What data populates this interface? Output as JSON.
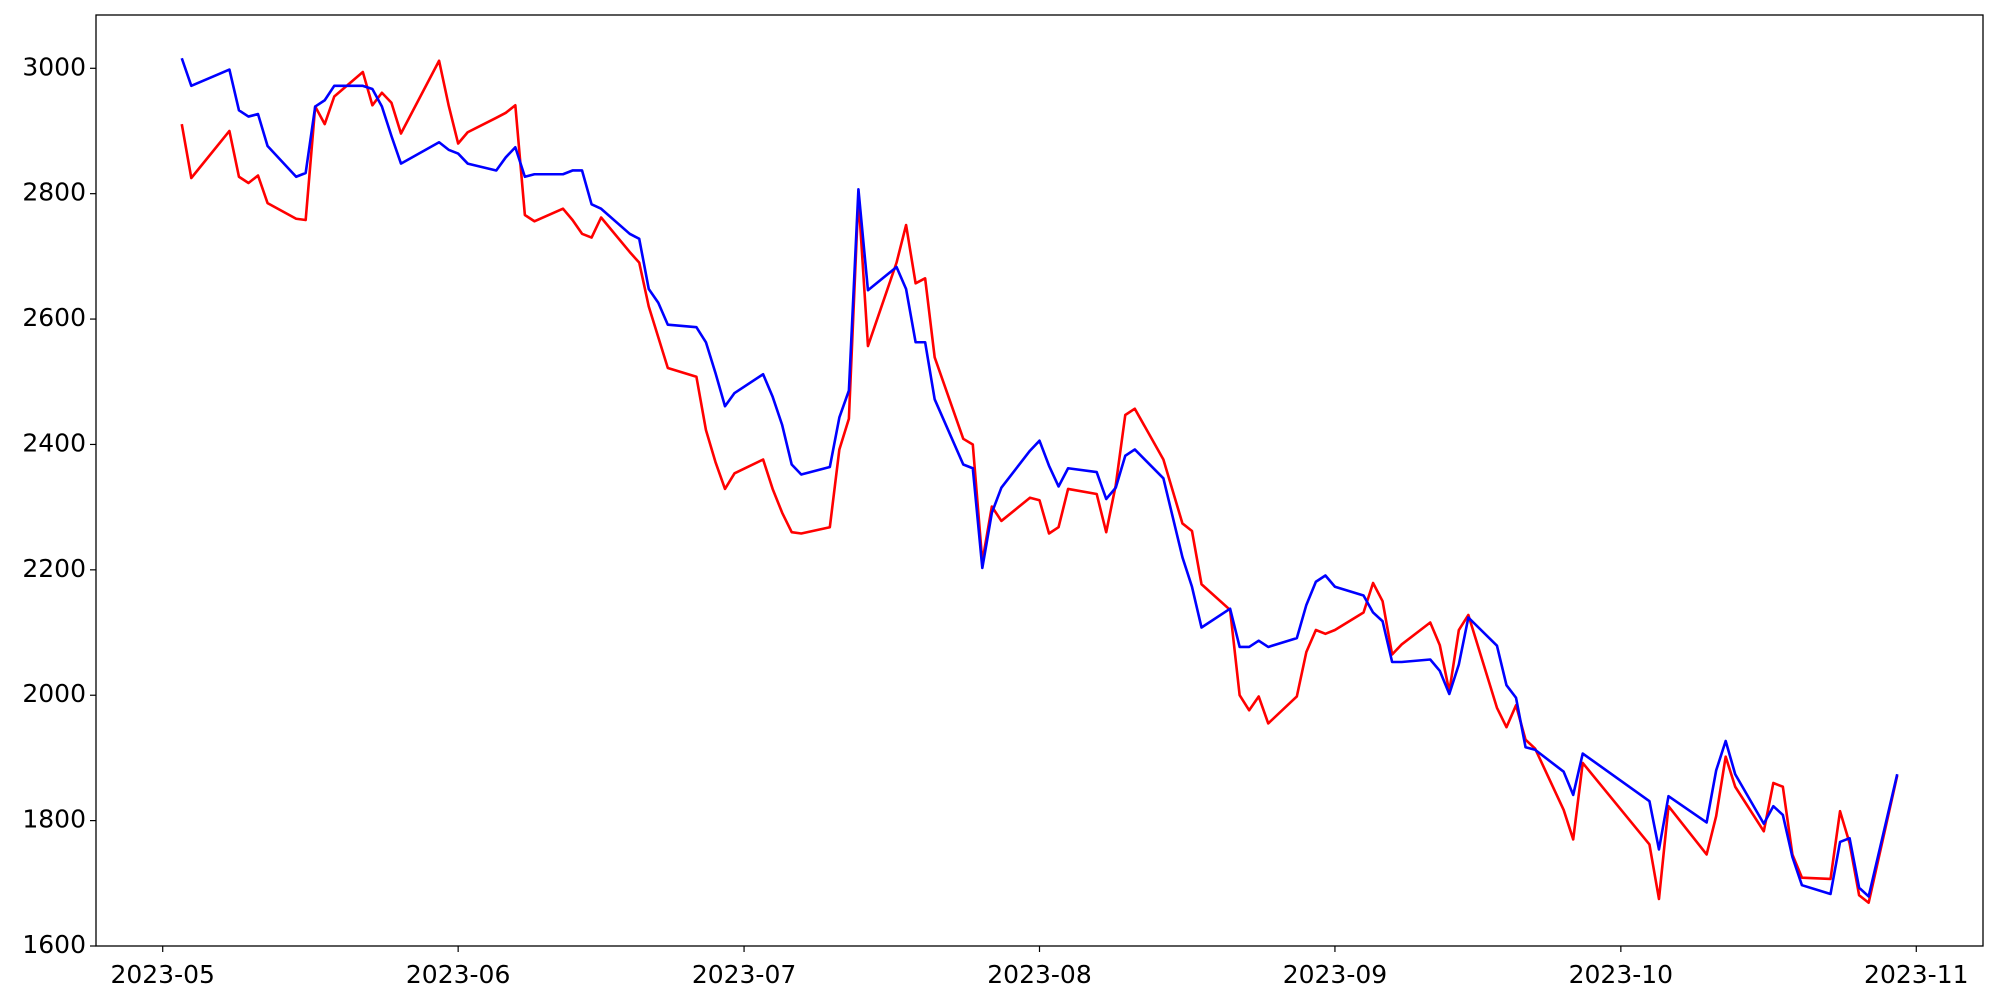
{
  "chart_data": {
    "type": "line",
    "x": [
      "2023-05-03",
      "2023-05-04",
      "2023-05-08",
      "2023-05-09",
      "2023-05-10",
      "2023-05-11",
      "2023-05-12",
      "2023-05-15",
      "2023-05-16",
      "2023-05-17",
      "2023-05-18",
      "2023-05-19",
      "2023-05-22",
      "2023-05-23",
      "2023-05-24",
      "2023-05-25",
      "2023-05-26",
      "2023-05-30",
      "2023-05-31",
      "2023-06-01",
      "2023-06-02",
      "2023-06-05",
      "2023-06-06",
      "2023-06-07",
      "2023-06-08",
      "2023-06-09",
      "2023-06-12",
      "2023-06-13",
      "2023-06-14",
      "2023-06-15",
      "2023-06-16",
      "2023-06-19",
      "2023-06-20",
      "2023-06-21",
      "2023-06-22",
      "2023-06-23",
      "2023-06-26",
      "2023-06-27",
      "2023-06-28",
      "2023-06-29",
      "2023-06-30",
      "2023-07-03",
      "2023-07-04",
      "2023-07-05",
      "2023-07-06",
      "2023-07-07",
      "2023-07-10",
      "2023-07-11",
      "2023-07-12",
      "2023-07-13",
      "2023-07-14",
      "2023-07-17",
      "2023-07-18",
      "2023-07-19",
      "2023-07-20",
      "2023-07-21",
      "2023-07-24",
      "2023-07-25",
      "2023-07-26",
      "2023-07-27",
      "2023-07-28",
      "2023-07-31",
      "2023-08-01",
      "2023-08-02",
      "2023-08-03",
      "2023-08-04",
      "2023-08-07",
      "2023-08-08",
      "2023-08-09",
      "2023-08-10",
      "2023-08-11",
      "2023-08-14",
      "2023-08-16",
      "2023-08-17",
      "2023-08-18",
      "2023-08-21",
      "2023-08-22",
      "2023-08-23",
      "2023-08-24",
      "2023-08-25",
      "2023-08-28",
      "2023-08-29",
      "2023-08-30",
      "2023-08-31",
      "2023-09-01",
      "2023-09-04",
      "2023-09-05",
      "2023-09-06",
      "2023-09-07",
      "2023-09-08",
      "2023-09-11",
      "2023-09-12",
      "2023-09-13",
      "2023-09-14",
      "2023-09-15",
      "2023-09-18",
      "2023-09-19",
      "2023-09-20",
      "2023-09-21",
      "2023-09-22",
      "2023-09-25",
      "2023-09-26",
      "2023-09-27",
      "2023-10-04",
      "2023-10-05",
      "2023-10-06",
      "2023-10-10",
      "2023-10-11",
      "2023-10-12",
      "2023-10-13",
      "2023-10-16",
      "2023-10-17",
      "2023-10-18",
      "2023-10-19",
      "2023-10-20",
      "2023-10-23",
      "2023-10-24",
      "2023-10-25",
      "2023-10-26",
      "2023-10-27",
      "2023-10-30"
    ],
    "series": [
      {
        "color": "#ff0000",
        "values": [
          2911,
          2825,
          2900,
          2827,
          2817,
          2829,
          2785,
          2760,
          2758,
          2939,
          2911,
          2955,
          2994,
          2941,
          2961,
          2945,
          2896,
          3012,
          2941,
          2880,
          2898,
          2921,
          2929,
          2941,
          2766,
          2756,
          2776,
          2758,
          2736,
          2730,
          2762,
          2707,
          2690,
          2620,
          2571,
          2522,
          2508,
          2423,
          2372,
          2329,
          2354,
          2376,
          2329,
          2291,
          2260,
          2258,
          2268,
          2392,
          2441,
          2795,
          2557,
          2690,
          2750,
          2657,
          2665,
          2539,
          2409,
          2400,
          2213,
          2301,
          2278,
          2315,
          2311,
          2258,
          2268,
          2329,
          2321,
          2260,
          2335,
          2447,
          2457,
          2376,
          2274,
          2262,
          2177,
          2136,
          2000,
          1976,
          1998,
          1955,
          1998,
          2069,
          2104,
          2098,
          2104,
          2132,
          2179,
          2150,
          2065,
          2081,
          2116,
          2080,
          2006,
          2104,
          2128,
          1980,
          1949,
          1984,
          1929,
          1915,
          1817,
          1770,
          1892,
          1762,
          1675,
          1823,
          1746,
          1807,
          1902,
          1854,
          1783,
          1860,
          1854,
          1746,
          1709,
          1707,
          1815,
          1764,
          1681,
          1669,
          1872
        ]
      },
      {
        "color": "#0000ff",
        "values": [
          3016,
          2972,
          2998,
          2933,
          2923,
          2927,
          2876,
          2827,
          2833,
          2939,
          2949,
          2972,
          2972,
          2967,
          2939,
          2892,
          2848,
          2882,
          2870,
          2864,
          2848,
          2837,
          2858,
          2874,
          2827,
          2831,
          2831,
          2837,
          2837,
          2783,
          2776,
          2736,
          2728,
          2648,
          2626,
          2591,
          2587,
          2563,
          2514,
          2461,
          2482,
          2512,
          2476,
          2431,
          2368,
          2352,
          2364,
          2443,
          2486,
          2807,
          2646,
          2683,
          2648,
          2563,
          2563,
          2472,
          2368,
          2362,
          2203,
          2291,
          2331,
          2390,
          2406,
          2366,
          2333,
          2362,
          2356,
          2313,
          2331,
          2382,
          2392,
          2346,
          2220,
          2173,
          2108,
          2138,
          2077,
          2077,
          2087,
          2077,
          2091,
          2144,
          2181,
          2191,
          2173,
          2159,
          2132,
          2118,
          2053,
          2053,
          2057,
          2039,
          2002,
          2049,
          2124,
          2079,
          2016,
          1996,
          1917,
          1913,
          1878,
          1841,
          1907,
          1831,
          1754,
          1839,
          1797,
          1880,
          1927,
          1874,
          1795,
          1823,
          1809,
          1742,
          1697,
          1683,
          1766,
          1772,
          1693,
          1679,
          1874
        ]
      }
    ],
    "xlim": [
      "2023-04-24",
      "2023-11-08"
    ],
    "xticks": [
      "2023-05",
      "2023-06",
      "2023-07",
      "2023-08",
      "2023-09",
      "2023-10",
      "2023-11"
    ],
    "ylim": [
      1600,
      3085
    ],
    "yticks": [
      1600,
      1800,
      2000,
      2200,
      2400,
      2600,
      2800,
      3000
    ],
    "grid": false
  }
}
